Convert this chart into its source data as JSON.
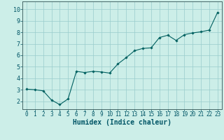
{
  "x": [
    0,
    1,
    2,
    3,
    4,
    5,
    6,
    7,
    8,
    9,
    10,
    11,
    12,
    13,
    14,
    15,
    16,
    17,
    18,
    19,
    20,
    21,
    22,
    23
  ],
  "y": [
    3.05,
    3.0,
    2.9,
    2.1,
    1.7,
    2.2,
    4.6,
    4.5,
    4.6,
    4.55,
    4.45,
    5.25,
    5.8,
    6.4,
    6.6,
    6.65,
    7.55,
    7.75,
    7.3,
    7.8,
    7.95,
    8.05,
    8.2,
    9.75
  ],
  "xlabel": "Humidex (Indice chaleur)",
  "xlim": [
    -0.5,
    23.5
  ],
  "ylim": [
    1.3,
    10.7
  ],
  "yticks": [
    2,
    3,
    4,
    5,
    6,
    7,
    8,
    9,
    10
  ],
  "xticks": [
    0,
    1,
    2,
    3,
    4,
    5,
    6,
    7,
    8,
    9,
    10,
    11,
    12,
    13,
    14,
    15,
    16,
    17,
    18,
    19,
    20,
    21,
    22,
    23
  ],
  "line_color": "#006060",
  "marker": "D",
  "marker_size": 1.8,
  "bg_color": "#cceee8",
  "grid_color": "#99cccc",
  "xlabel_color": "#005566",
  "tick_color": "#005566",
  "xlabel_fontsize": 7,
  "tick_fontsize": 5.5
}
